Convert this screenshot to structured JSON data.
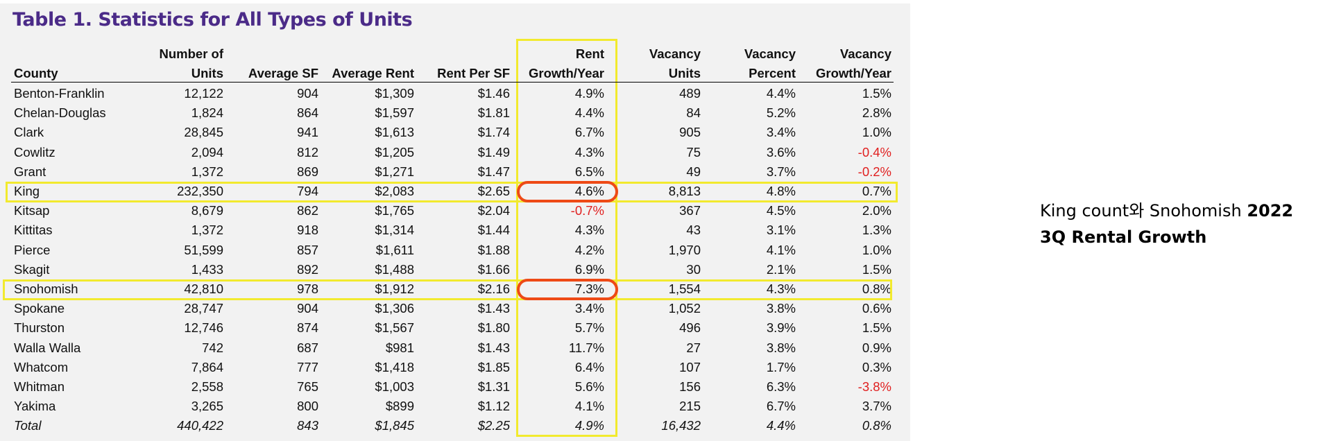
{
  "table": {
    "title": "Table 1. Statistics for All Types of Units",
    "columns": [
      {
        "line1": "",
        "line2": "County"
      },
      {
        "line1": "Number of",
        "line2": "Units"
      },
      {
        "line1": "",
        "line2": "Average SF"
      },
      {
        "line1": "",
        "line2": "Average Rent"
      },
      {
        "line1": "",
        "line2": "Rent Per SF"
      },
      {
        "line1": "Rent",
        "line2": "Growth/Year"
      },
      {
        "line1": "Vacancy",
        "line2": "Units"
      },
      {
        "line1": "Vacancy",
        "line2": "Percent"
      },
      {
        "line1": "Vacancy",
        "line2": "Growth/Year"
      }
    ],
    "rows": [
      [
        "Benton-Franklin",
        "12,122",
        "904",
        "$1,309",
        "$1.46",
        "4.9%",
        "489",
        "4.4%",
        "1.5%"
      ],
      [
        "Chelan-Douglas",
        "1,824",
        "864",
        "$1,597",
        "$1.81",
        "4.4%",
        "84",
        "5.2%",
        "2.8%"
      ],
      [
        "Clark",
        "28,845",
        "941",
        "$1,613",
        "$1.74",
        "6.7%",
        "905",
        "3.4%",
        "1.0%"
      ],
      [
        "Cowlitz",
        "2,094",
        "812",
        "$1,205",
        "$1.49",
        "4.3%",
        "75",
        "3.6%",
        "-0.4%"
      ],
      [
        "Grant",
        "1,372",
        "869",
        "$1,271",
        "$1.47",
        "6.5%",
        "49",
        "3.7%",
        "-0.2%"
      ],
      [
        "King",
        "232,350",
        "794",
        "$2,083",
        "$2.65",
        "4.6%",
        "8,813",
        "4.8%",
        "0.7%"
      ],
      [
        "Kitsap",
        "8,679",
        "862",
        "$1,765",
        "$2.04",
        "-0.7%",
        "367",
        "4.5%",
        "2.0%"
      ],
      [
        "Kittitas",
        "1,372",
        "918",
        "$1,314",
        "$1.44",
        "4.3%",
        "43",
        "3.1%",
        "1.3%"
      ],
      [
        "Pierce",
        "51,599",
        "857",
        "$1,611",
        "$1.88",
        "4.2%",
        "1,970",
        "4.1%",
        "1.0%"
      ],
      [
        "Skagit",
        "1,433",
        "892",
        "$1,488",
        "$1.66",
        "6.9%",
        "30",
        "2.1%",
        "1.5%"
      ],
      [
        "Snohomish",
        "42,810",
        "978",
        "$1,912",
        "$2.16",
        "7.3%",
        "1,554",
        "4.3%",
        "0.8%"
      ],
      [
        "Spokane",
        "28,747",
        "904",
        "$1,306",
        "$1.43",
        "3.4%",
        "1,052",
        "3.8%",
        "0.6%"
      ],
      [
        "Thurston",
        "12,746",
        "874",
        "$1,567",
        "$1.80",
        "5.7%",
        "496",
        "3.9%",
        "1.5%"
      ],
      [
        "Walla Walla",
        "742",
        "687",
        "$981",
        "$1.43",
        "11.7%",
        "27",
        "3.8%",
        "0.9%"
      ],
      [
        "Whatcom",
        "7,864",
        "777",
        "$1,418",
        "$1.85",
        "6.4%",
        "107",
        "1.7%",
        "0.3%"
      ],
      [
        "Whitman",
        "2,558",
        "765",
        "$1,003",
        "$1.31",
        "5.6%",
        "156",
        "6.3%",
        "-3.8%"
      ],
      [
        "Yakima",
        "3,265",
        "800",
        "$899",
        "$1.12",
        "4.1%",
        "215",
        "6.7%",
        "3.7%"
      ]
    ],
    "total": [
      "Total",
      "440,422",
      "843",
      "$1,845",
      "$2.25",
      "4.9%",
      "16,432",
      "4.4%",
      "0.8%"
    ],
    "highlighted_rows": [
      "King",
      "Snohomish"
    ],
    "highlighted_column": "Rent Growth/Year",
    "circled_cells": [
      "4.6%",
      "7.3%"
    ],
    "colors": {
      "title": "#4b2b88",
      "negative": "#e02020",
      "highlight_box": "#f2ea2e",
      "circle": "#ee4a16",
      "panel_background": "#f2f2f2"
    }
  },
  "side_note": {
    "normal_text": "King count와 Snohomish ",
    "bold_text": "2022 3Q Rental Growth"
  }
}
